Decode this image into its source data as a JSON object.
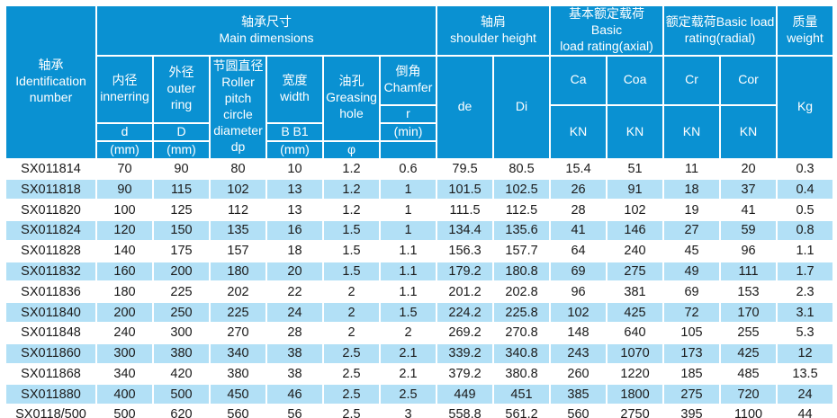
{
  "colors": {
    "header_bg": "#0A91D2",
    "header_text": "#FFFFFF",
    "alt_row_bg": "#B2E0F6",
    "row_bg": "#FFFFFF",
    "data_text": "#1A1A1A",
    "page_bg": "#FFFFFF"
  },
  "table": {
    "id_header": "轴承\nIdentification\nnumber",
    "groups": {
      "main_dimensions": "轴承尺寸\nMain dimensions",
      "shoulder_height": "轴肩\nshoulder height",
      "load_axial": "基本额定载荷 Basic\nload rating(axial)",
      "load_radial": "额定载荷Basic load\nrating(radial)",
      "weight": "质量\nweight"
    },
    "cols": {
      "inner": "内径\ninnerring",
      "outer": "外径\nouter\nring",
      "pitch": "节圆直径\nRoller\npitch\ncircle\ndiameter\ndp",
      "width": "宽度\nwidth",
      "grease": "油孔\nGreasing\nhole",
      "chamfer": "倒角\nChamfer",
      "de": "de",
      "di": "Di",
      "ca": "Ca",
      "coa": "Coa",
      "cr": "Cr",
      "cor": "Cor",
      "kg": "Kg"
    },
    "subs": {
      "d": "d",
      "D": "D",
      "bb1": "B  B1",
      "r": "r",
      "min": "(min)",
      "mm": "(mm)",
      "phi": "φ",
      "kn": "KN",
      "empty": ""
    },
    "rows": [
      [
        "SX011814",
        "70",
        "90",
        "80",
        "10",
        "1.2",
        "0.6",
        "79.5",
        "80.5",
        "15.4",
        "51",
        "11",
        "20",
        "0.3"
      ],
      [
        "SX011818",
        "90",
        "115",
        "102",
        "13",
        "1.2",
        "1",
        "101.5",
        "102.5",
        "26",
        "91",
        "18",
        "37",
        "0.4"
      ],
      [
        "SX011820",
        "100",
        "125",
        "112",
        "13",
        "1.2",
        "1",
        "111.5",
        "112.5",
        "28",
        "102",
        "19",
        "41",
        "0.5"
      ],
      [
        "SX011824",
        "120",
        "150",
        "135",
        "16",
        "1.5",
        "1",
        "134.4",
        "135.6",
        "41",
        "146",
        "27",
        "59",
        "0.8"
      ],
      [
        "SX011828",
        "140",
        "175",
        "157",
        "18",
        "1.5",
        "1.1",
        "156.3",
        "157.7",
        "64",
        "240",
        "45",
        "96",
        "1.1"
      ],
      [
        "SX011832",
        "160",
        "200",
        "180",
        "20",
        "1.5",
        "1.1",
        "179.2",
        "180.8",
        "69",
        "275",
        "49",
        "111",
        "1.7"
      ],
      [
        "SX011836",
        "180",
        "225",
        "202",
        "22",
        "2",
        "1.1",
        "201.2",
        "202.8",
        "96",
        "381",
        "69",
        "153",
        "2.3"
      ],
      [
        "SX011840",
        "200",
        "250",
        "225",
        "24",
        "2",
        "1.5",
        "224.2",
        "225.8",
        "102",
        "425",
        "72",
        "170",
        "3.1"
      ],
      [
        "SX011848",
        "240",
        "300",
        "270",
        "28",
        "2",
        "2",
        "269.2",
        "270.8",
        "148",
        "640",
        "105",
        "255",
        "5.3"
      ],
      [
        "SX011860",
        "300",
        "380",
        "340",
        "38",
        "2.5",
        "2.1",
        "339.2",
        "340.8",
        "243",
        "1070",
        "173",
        "425",
        "12"
      ],
      [
        "SX011868",
        "340",
        "420",
        "380",
        "38",
        "2.5",
        "2.1",
        "379.2",
        "380.8",
        "260",
        "1220",
        "185",
        "485",
        "13.5"
      ],
      [
        "SX011880",
        "400",
        "500",
        "450",
        "46",
        "2.5",
        "2.5",
        "449",
        "451",
        "385",
        "1800",
        "275",
        "720",
        "24"
      ],
      [
        "SX0118/500",
        "500",
        "620",
        "560",
        "56",
        "2.5",
        "3",
        "558.8",
        "561.2",
        "560",
        "2750",
        "395",
        "1100",
        "44"
      ]
    ]
  }
}
